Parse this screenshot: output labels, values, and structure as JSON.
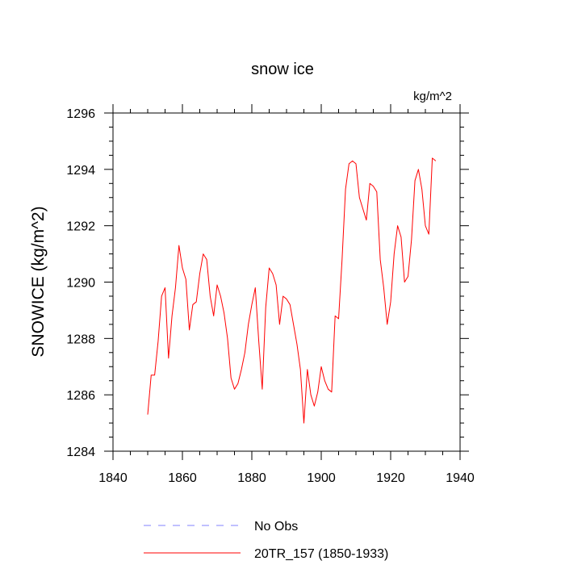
{
  "chart_data": {
    "type": "line",
    "title": "snow ice",
    "units": "kg/m^2",
    "xlabel": "",
    "ylabel": "SNOWICE  (kg/m^2)",
    "xlim": [
      1840,
      1940
    ],
    "ylim": [
      1284,
      1296
    ],
    "xticks": [
      1840,
      1860,
      1880,
      1900,
      1920,
      1940
    ],
    "yticks": [
      1284,
      1286,
      1288,
      1290,
      1292,
      1294,
      1296
    ],
    "series": [
      {
        "name": "No Obs",
        "color": "#8080ff",
        "style": "dashed",
        "x": [],
        "y": []
      },
      {
        "name": "20TR_157 (1850-1933)",
        "color": "#ff0000",
        "style": "solid",
        "x": [
          1850,
          1851,
          1852,
          1853,
          1854,
          1855,
          1856,
          1857,
          1858,
          1859,
          1860,
          1861,
          1862,
          1863,
          1864,
          1865,
          1866,
          1867,
          1868,
          1869,
          1870,
          1871,
          1872,
          1873,
          1874,
          1875,
          1876,
          1877,
          1878,
          1879,
          1880,
          1881,
          1882,
          1883,
          1884,
          1885,
          1886,
          1887,
          1888,
          1889,
          1890,
          1891,
          1892,
          1893,
          1894,
          1895,
          1896,
          1897,
          1898,
          1899,
          1900,
          1901,
          1902,
          1903,
          1904,
          1905,
          1906,
          1907,
          1908,
          1909,
          1910,
          1911,
          1912,
          1913,
          1914,
          1915,
          1916,
          1917,
          1918,
          1919,
          1920,
          1921,
          1922,
          1923,
          1924,
          1925,
          1926,
          1927,
          1928,
          1929,
          1930,
          1931,
          1932,
          1933
        ],
        "y": [
          1285.3,
          1286.7,
          1286.7,
          1287.9,
          1289.5,
          1289.8,
          1287.3,
          1288.8,
          1289.8,
          1291.3,
          1290.5,
          1290.1,
          1288.3,
          1289.2,
          1289.3,
          1290.3,
          1291.0,
          1290.8,
          1289.5,
          1288.8,
          1289.9,
          1289.5,
          1288.9,
          1288.0,
          1286.6,
          1286.2,
          1286.4,
          1286.9,
          1287.5,
          1288.5,
          1289.2,
          1289.8,
          1287.9,
          1286.2,
          1289.1,
          1290.5,
          1290.3,
          1289.9,
          1288.5,
          1289.5,
          1289.4,
          1289.2,
          1288.5,
          1287.8,
          1286.9,
          1285.0,
          1286.9,
          1286.0,
          1285.6,
          1286.1,
          1287.0,
          1286.5,
          1286.2,
          1286.1,
          1288.8,
          1288.7,
          1290.8,
          1293.3,
          1294.2,
          1294.3,
          1294.2,
          1293.0,
          1292.6,
          1292.2,
          1293.5,
          1293.4,
          1293.2,
          1290.8,
          1289.8,
          1288.5,
          1289.3,
          1291.0,
          1292.0,
          1291.6,
          1290.0,
          1290.2,
          1291.5,
          1293.6,
          1294.0,
          1293.3,
          1292.0,
          1291.7,
          1294.4,
          1294.3
        ]
      }
    ],
    "legend": [
      {
        "label": "No Obs",
        "color": "#8080ff",
        "style": "dashed"
      },
      {
        "label": "20TR_157 (1850-1933)",
        "color": "#ff0000",
        "style": "solid"
      }
    ],
    "legend_position": "bottom"
  }
}
